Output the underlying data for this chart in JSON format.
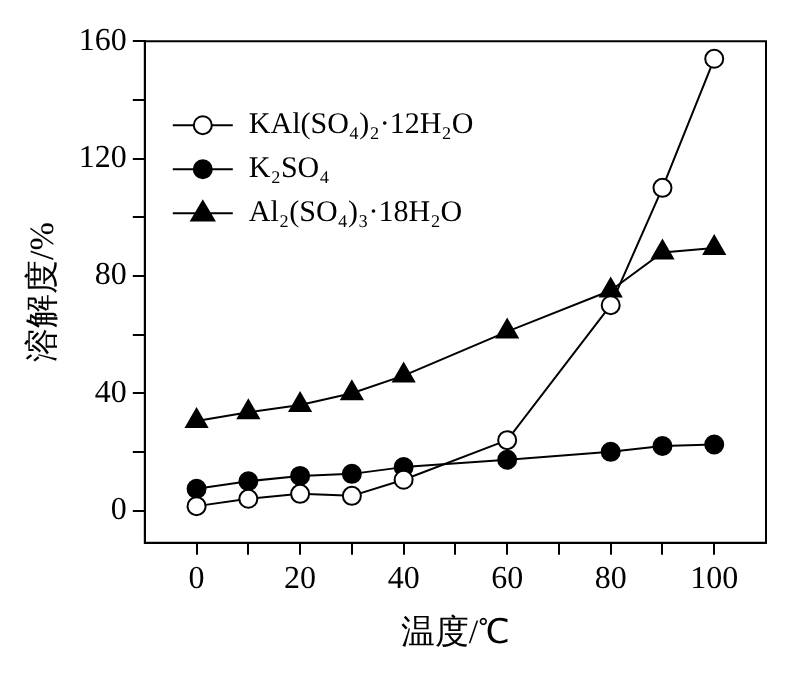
{
  "chart_data": {
    "type": "line",
    "xlabel": "温度/℃",
    "ylabel": "溶解度/%",
    "x": [
      0,
      10,
      20,
      30,
      40,
      60,
      80,
      90,
      100
    ],
    "series": [
      {
        "name": "KAl(SO₄)₂·12H₂O",
        "color": "#000000",
        "marker": "circle",
        "values": [
          1.5,
          4,
          5.7,
          5,
          10.5,
          24,
          70,
          110,
          154
        ]
      },
      {
        "name": "K₂SO₄",
        "color": "#000000",
        "marker": "circle",
        "values": [
          7.4,
          10,
          11.8,
          12.5,
          14.8,
          17.3,
          20,
          22,
          22.5
        ]
      },
      {
        "name": "Al₂(SO₄)₃·18H₂O",
        "color": "#000000",
        "marker": "triangle",
        "values": [
          30.5,
          33.5,
          36,
          40,
          46,
          61,
          75,
          88,
          89.5
        ]
      }
    ],
    "xlim": [
      -10,
      110
    ],
    "ylim": [
      -11,
      160
    ],
    "xticks": [
      0,
      {
        "value": 10,
        "label": null
      },
      20,
      {
        "value": 30,
        "label": null
      },
      40,
      {
        "value": 50,
        "label": null
      },
      60,
      {
        "value": 70,
        "label": null
      },
      80,
      {
        "value": 90,
        "label": null
      },
      100
    ],
    "yticks": [
      0,
      {
        "value": 20,
        "label": null
      },
      40,
      {
        "value": 60,
        "label": null
      },
      80,
      {
        "value": 100,
        "label": null
      },
      120,
      {
        "value": 140,
        "label": null
      },
      160
    ],
    "grid": false,
    "legend": "top left"
  }
}
